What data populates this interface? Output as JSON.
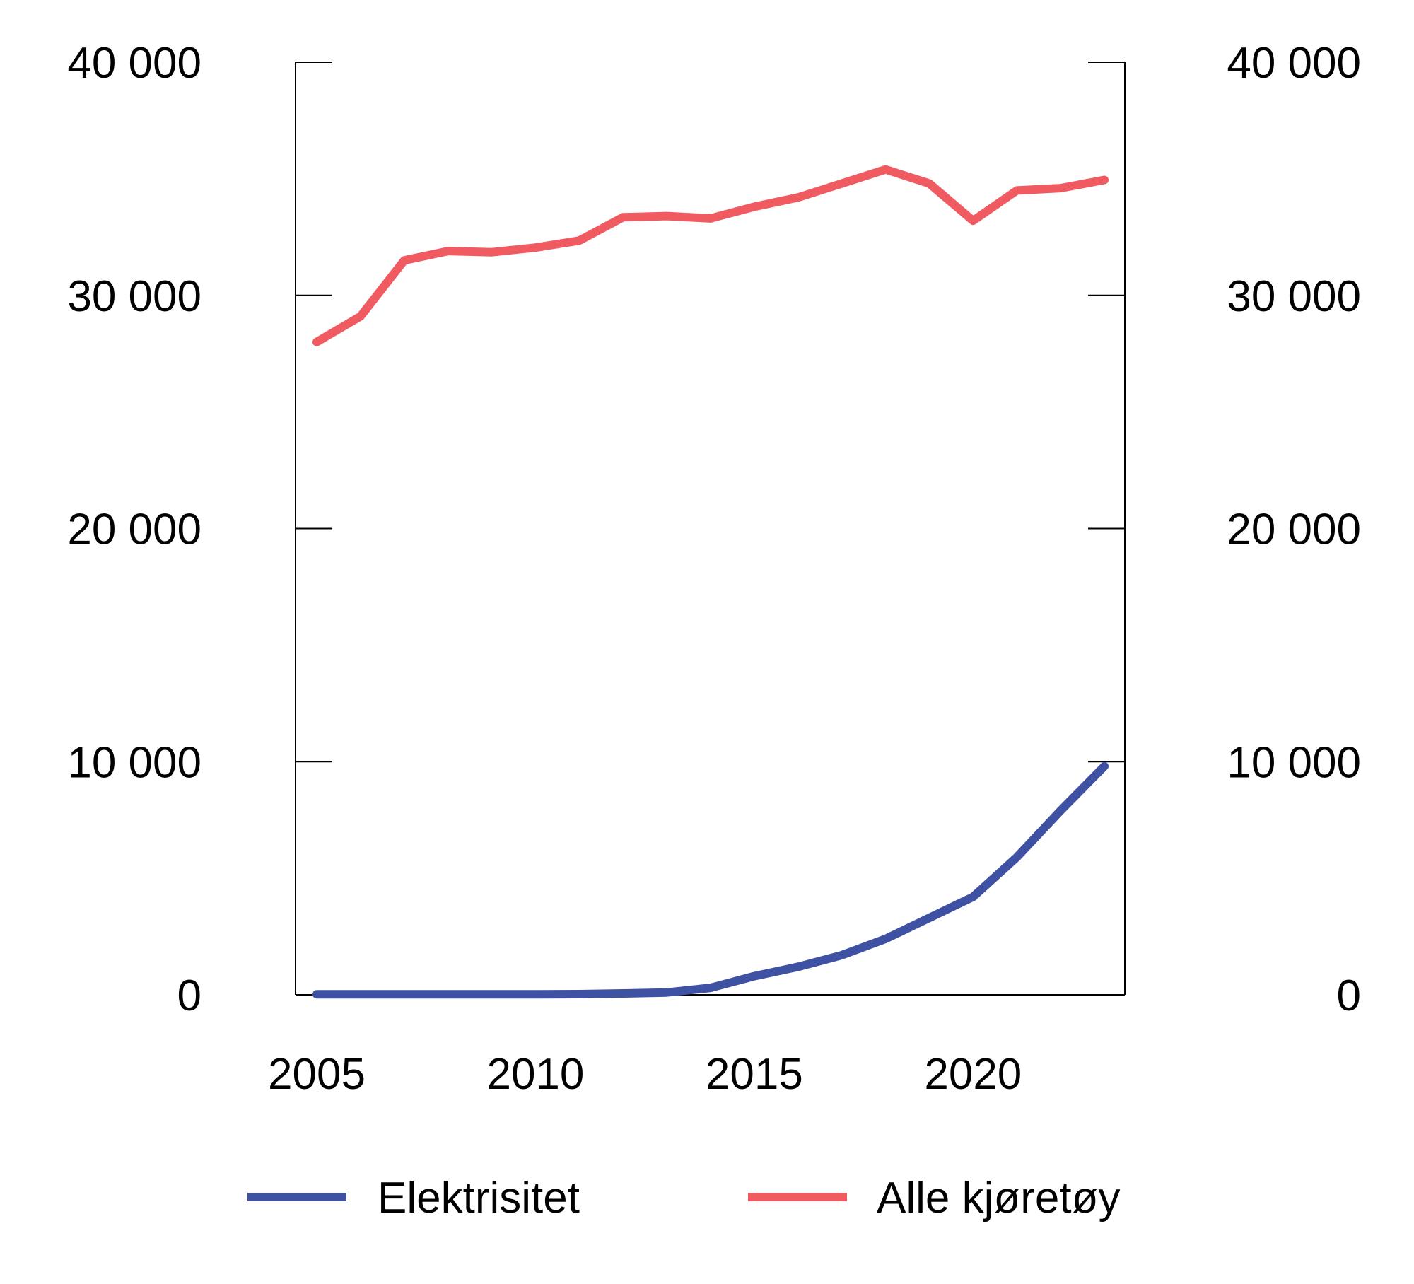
{
  "chart_data": {
    "type": "line",
    "title": "",
    "xlabel": "",
    "ylabel": "",
    "x": [
      2005,
      2006,
      2007,
      2008,
      2009,
      2010,
      2011,
      2012,
      2013,
      2014,
      2015,
      2016,
      2017,
      2018,
      2019,
      2020,
      2021,
      2022,
      2023
    ],
    "ylim": [
      0,
      40000
    ],
    "y_ticks": [
      0,
      10000,
      20000,
      30000,
      40000
    ],
    "y_tick_labels": [
      "0",
      "10 000",
      "20 000",
      "30 000",
      "40 000"
    ],
    "x_ticks": [
      2005,
      2010,
      2015,
      2020
    ],
    "x_tick_labels": [
      "2005",
      "2010",
      "2015",
      "2020"
    ],
    "dual_y_axis": true,
    "grid": false,
    "legend_position": "bottom",
    "series": [
      {
        "name": "Elektrisitet",
        "color": "#3f51a3",
        "values": [
          20,
          20,
          20,
          20,
          20,
          20,
          30,
          60,
          100,
          300,
          800,
          1200,
          1700,
          2400,
          3300,
          4200,
          5900,
          7900,
          9800
        ]
      },
      {
        "name": "Alle kjøretøy",
        "color": "#ef5b60",
        "values": [
          28000,
          29100,
          31500,
          31900,
          31850,
          32050,
          32350,
          33350,
          33400,
          33300,
          33800,
          34200,
          34800,
          35400,
          34800,
          33200,
          34500,
          34600,
          34950
        ]
      }
    ]
  }
}
